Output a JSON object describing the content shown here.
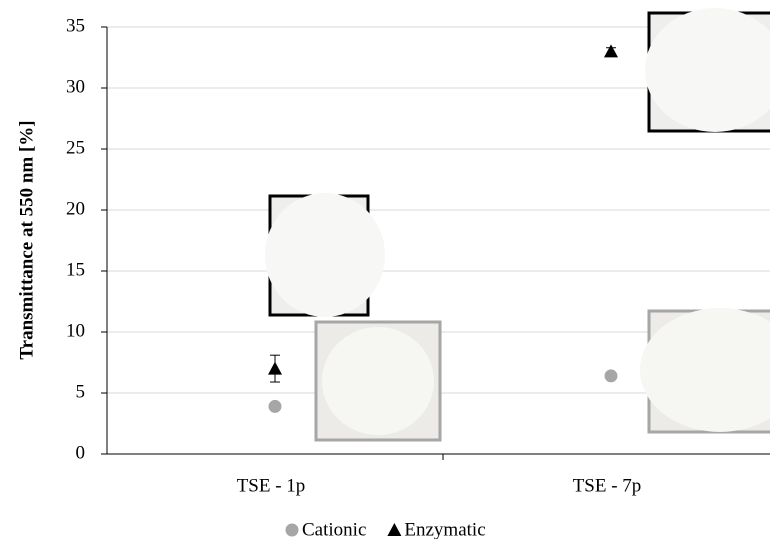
{
  "chart_data": {
    "type": "scatter",
    "y_label": "Transmittance at 550 nm [%]",
    "categories": [
      "TSE - 1p",
      "TSE - 7p"
    ],
    "series": [
      {
        "name": "Cationic",
        "color": "#a6a6a6",
        "marker": "circle",
        "values": [
          3.9,
          6.4
        ]
      },
      {
        "name": "Enzymatic",
        "color": "#000000",
        "marker": "triangle",
        "values": [
          7.0,
          33.0
        ],
        "errors": [
          1.1,
          0.3
        ]
      }
    ],
    "ylim": [
      0,
      35
    ],
    "yticks": [
      0,
      5,
      10,
      15,
      20,
      25,
      30,
      35
    ],
    "grid": true,
    "legend": "bottom"
  }
}
